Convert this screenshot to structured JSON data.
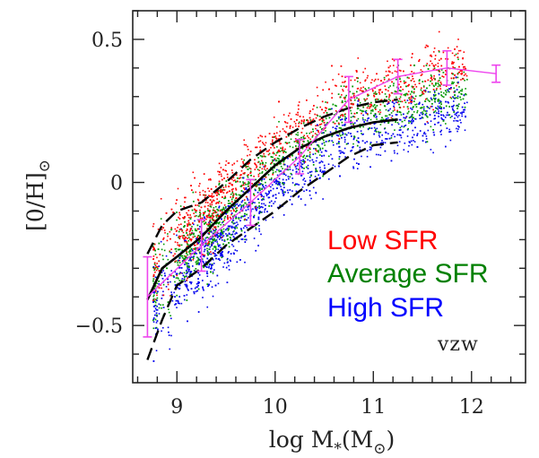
{
  "chart_data": {
    "type": "scatter",
    "xlabel": "log M",
    "xlabel_sub": "*",
    "xlabel_unit_open": "(M",
    "xlabel_unit_sub": "⊙",
    "xlabel_unit_close": ")",
    "ylabel": "[0/H]",
    "ylabel_sub": "⊙",
    "xlim": [
      8.55,
      12.55
    ],
    "ylim": [
      -0.7,
      0.6
    ],
    "x_ticks": [
      {
        "value": 9,
        "label": "9"
      },
      {
        "value": 10,
        "label": "10"
      },
      {
        "value": 11,
        "label": "11"
      },
      {
        "value": 12,
        "label": "12"
      }
    ],
    "y_ticks": [
      {
        "value": 0.5,
        "label": "0.5"
      },
      {
        "value": 0,
        "label": "0"
      },
      {
        "value": -0.5,
        "label": "−0.5"
      }
    ],
    "x_minor_step": 0.2,
    "y_minor_step": 0.1,
    "grid": false,
    "legend": {
      "placement": "lower-right",
      "entries": [
        {
          "label": "Low SFR",
          "color": "#ff0000"
        },
        {
          "label": "Average SFR",
          "color": "#008000"
        },
        {
          "label": "High SFR",
          "color": "#0000ff"
        }
      ]
    },
    "annotation": "vzw",
    "series": [
      {
        "name": "Low SFR",
        "kind": "scatter-cloud",
        "color": "#ff0000",
        "offset": 0.07,
        "x_range": [
          8.75,
          11.95
        ],
        "count": 1400
      },
      {
        "name": "Average SFR",
        "kind": "scatter-cloud",
        "color": "#009900",
        "offset": 0.0,
        "x_range": [
          8.75,
          11.95
        ],
        "count": 1700
      },
      {
        "name": "High SFR",
        "kind": "scatter-cloud",
        "color": "#0000ee",
        "offset": -0.08,
        "x_range": [
          8.75,
          11.95
        ],
        "count": 1700
      },
      {
        "kind": "median",
        "color": "#000000",
        "style": "solid",
        "x": [
          8.7,
          8.85,
          9.0,
          9.25,
          9.5,
          9.75,
          10.0,
          10.25,
          10.5,
          10.75,
          11.0,
          11.25
        ],
        "y": [
          -0.41,
          -0.3,
          -0.26,
          -0.19,
          -0.1,
          -0.02,
          0.06,
          0.12,
          0.16,
          0.19,
          0.21,
          0.22
        ]
      },
      {
        "kind": "upper-percentile",
        "color": "#000000",
        "style": "dashed",
        "x": [
          8.7,
          8.85,
          9.0,
          9.25,
          9.5,
          9.75,
          10.0,
          10.25,
          10.5,
          10.75,
          11.0,
          11.25
        ],
        "y": [
          -0.25,
          -0.15,
          -0.1,
          -0.07,
          0.0,
          0.08,
          0.14,
          0.19,
          0.23,
          0.26,
          0.28,
          0.29
        ]
      },
      {
        "kind": "lower-percentile",
        "color": "#000000",
        "style": "dashed",
        "x": [
          8.7,
          8.85,
          9.0,
          9.25,
          9.5,
          9.75,
          10.0,
          10.25,
          10.5,
          10.75,
          11.0,
          11.25
        ],
        "y": [
          -0.62,
          -0.48,
          -0.36,
          -0.3,
          -0.22,
          -0.16,
          -0.1,
          -0.03,
          0.03,
          0.09,
          0.13,
          0.14
        ]
      },
      {
        "kind": "observed",
        "color": "#ee44ee",
        "style": "solid-errorbars",
        "x": [
          8.7,
          9.25,
          9.75,
          10.25,
          10.75,
          11.25,
          11.75,
          12.25
        ],
        "y": [
          -0.4,
          -0.22,
          -0.07,
          0.09,
          0.29,
          0.37,
          0.4,
          0.38
        ],
        "err": [
          0.14,
          0.09,
          0.08,
          0.06,
          0.08,
          0.06,
          0.06,
          0.03
        ]
      }
    ]
  }
}
